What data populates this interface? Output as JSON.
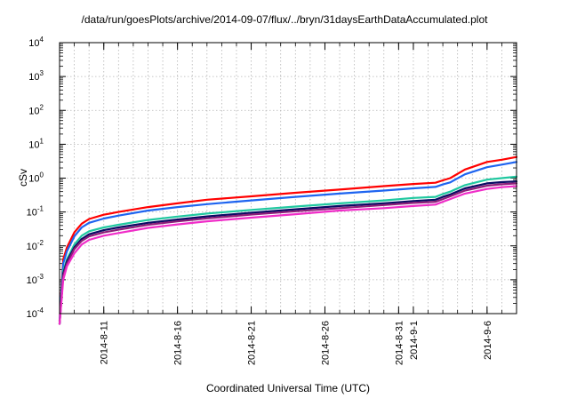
{
  "chart_data": {
    "type": "line",
    "title": "/data/run/goesPlots/archive/2014-09-07/flux/../bryn/31daysEarthDataAccumulated.plot",
    "xlabel": "Coordinated Universal Time (UTC)",
    "ylabel": "cSv",
    "yscale": "log",
    "ylim": [
      0.0001,
      10000
    ],
    "xlim": [
      "2014-08-08",
      "2014-09-08"
    ],
    "grid": true,
    "y_ticks": [
      {
        "base": "10",
        "exp": "-4"
      },
      {
        "base": "10",
        "exp": "-3"
      },
      {
        "base": "10",
        "exp": "-2"
      },
      {
        "base": "10",
        "exp": "-1"
      },
      {
        "base": "10",
        "exp": "0"
      },
      {
        "base": "10",
        "exp": "1"
      },
      {
        "base": "10",
        "exp": "2"
      },
      {
        "base": "10",
        "exp": "3"
      },
      {
        "base": "10",
        "exp": "4"
      }
    ],
    "x_ticks": [
      {
        "date": "2014-08-11",
        "label": "2014-8-11"
      },
      {
        "date": "2014-08-16",
        "label": "2014-8-16"
      },
      {
        "date": "2014-08-21",
        "label": "2014-8-21"
      },
      {
        "date": "2014-08-26",
        "label": "2014-8-26"
      },
      {
        "date": "2014-08-31",
        "label": "2014-8-31"
      },
      {
        "date": "2014-09-01",
        "label": "2014-9-1"
      },
      {
        "date": "2014-09-06",
        "label": "2014-9-6"
      }
    ],
    "x": [
      "2014-08-08 00:00",
      "2014-08-08 06:00",
      "2014-08-08 12:00",
      "2014-08-09 00:00",
      "2014-08-09 12:00",
      "2014-08-10 00:00",
      "2014-08-11 00:00",
      "2014-08-12 00:00",
      "2014-08-14 00:00",
      "2014-08-16 00:00",
      "2014-08-18 00:00",
      "2014-08-21 00:00",
      "2014-08-24 00:00",
      "2014-08-27 00:00",
      "2014-08-30 00:00",
      "2014-09-01 00:00",
      "2014-09-02 12:00",
      "2014-09-03 00:00",
      "2014-09-03 12:00",
      "2014-09-04 12:00",
      "2014-09-06 00:00",
      "2014-09-07 00:00",
      "2014-09-08 00:00"
    ],
    "series": [
      {
        "color": "#ff0000",
        "values": [
          6e-05,
          0.004,
          0.009,
          0.025,
          0.045,
          0.062,
          0.083,
          0.1,
          0.14,
          0.18,
          0.23,
          0.29,
          0.37,
          0.46,
          0.58,
          0.67,
          0.73,
          0.86,
          1.0,
          1.8,
          3.0,
          3.5,
          4.2
        ]
      },
      {
        "color": "#1e64f0",
        "values": [
          6e-05,
          0.003,
          0.007,
          0.019,
          0.035,
          0.048,
          0.064,
          0.078,
          0.11,
          0.14,
          0.17,
          0.22,
          0.28,
          0.35,
          0.43,
          0.5,
          0.55,
          0.65,
          0.75,
          1.3,
          2.1,
          2.5,
          3.0
        ]
      },
      {
        "color": "#20c8a0",
        "values": [
          5e-05,
          0.0018,
          0.004,
          0.011,
          0.02,
          0.027,
          0.035,
          0.042,
          0.058,
          0.073,
          0.09,
          0.115,
          0.145,
          0.18,
          0.22,
          0.26,
          0.28,
          0.34,
          0.4,
          0.62,
          0.9,
          1.0,
          1.1
        ]
      },
      {
        "color": "#0a0a64",
        "values": [
          5e-05,
          0.0015,
          0.0035,
          0.009,
          0.016,
          0.022,
          0.029,
          0.035,
          0.048,
          0.06,
          0.074,
          0.095,
          0.12,
          0.15,
          0.18,
          0.21,
          0.23,
          0.28,
          0.33,
          0.5,
          0.7,
          0.76,
          0.8
        ]
      },
      {
        "color": "#8c1e78",
        "values": [
          5e-05,
          0.0013,
          0.003,
          0.008,
          0.014,
          0.019,
          0.025,
          0.03,
          0.042,
          0.053,
          0.065,
          0.084,
          0.105,
          0.13,
          0.16,
          0.185,
          0.2,
          0.24,
          0.29,
          0.43,
          0.6,
          0.66,
          0.7
        ]
      },
      {
        "color": "#f02cc8",
        "values": [
          5e-05,
          0.001,
          0.0025,
          0.006,
          0.011,
          0.015,
          0.02,
          0.024,
          0.034,
          0.043,
          0.053,
          0.068,
          0.086,
          0.11,
          0.13,
          0.15,
          0.165,
          0.2,
          0.24,
          0.35,
          0.48,
          0.54,
          0.58
        ]
      }
    ]
  }
}
